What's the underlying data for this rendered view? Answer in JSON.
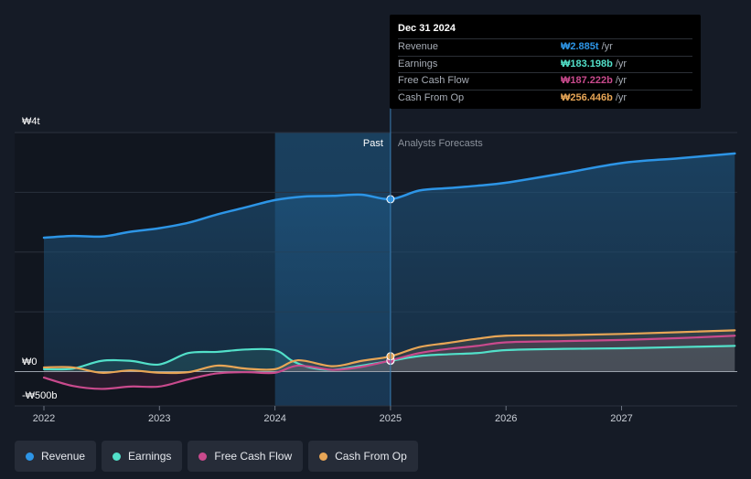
{
  "colors": {
    "revenue": "#2d95e6",
    "earnings": "#52e0c9",
    "free_cash_flow": "#c94a8d",
    "cash_from_op": "#e8a656"
  },
  "tooltip": {
    "date": "Dec 31 2024",
    "rows": [
      {
        "label": "Revenue",
        "value": "₩2.885t",
        "unit": "/yr"
      },
      {
        "label": "Earnings",
        "value": "₩183.198b",
        "unit": "/yr"
      },
      {
        "label": "Free Cash Flow",
        "value": "₩187.222b",
        "unit": "/yr"
      },
      {
        "label": "Cash From Op",
        "value": "₩256.446b",
        "unit": "/yr"
      }
    ]
  },
  "legend": [
    {
      "name": "Revenue"
    },
    {
      "name": "Earnings"
    },
    {
      "name": "Free Cash Flow"
    },
    {
      "name": "Cash From Op"
    }
  ],
  "chart_data": {
    "type": "line",
    "title": "",
    "y_unit": "trillion KRW",
    "ylim": [
      -0.5,
      4.0
    ],
    "y_tick_labels": {
      "top": "₩4t",
      "zero": "₩0",
      "bottom": "-₩500b"
    },
    "x_ticks": [
      2022,
      2023,
      2024,
      2025,
      2026,
      2027
    ],
    "x_tick_labels": [
      "2022",
      "2023",
      "2024",
      "2025",
      "2026",
      "2027"
    ],
    "xlim": [
      2021.75,
      2028.0
    ],
    "past_label": "Past",
    "forecast_label": "Analysts Forecasts",
    "forecast_start": 2025.0,
    "highlight_range": [
      2024.0,
      2025.0
    ],
    "series": [
      {
        "name": "Revenue",
        "key": "revenue",
        "points": [
          [
            2022.0,
            2.24
          ],
          [
            2022.25,
            2.27
          ],
          [
            2022.5,
            2.26
          ],
          [
            2022.75,
            2.34
          ],
          [
            2023.0,
            2.4
          ],
          [
            2023.25,
            2.49
          ],
          [
            2023.5,
            2.63
          ],
          [
            2023.75,
            2.75
          ],
          [
            2024.0,
            2.87
          ],
          [
            2024.25,
            2.93
          ],
          [
            2024.5,
            2.94
          ],
          [
            2024.75,
            2.96
          ],
          [
            2025.0,
            2.885
          ],
          [
            2025.25,
            3.03
          ],
          [
            2025.5,
            3.07
          ],
          [
            2025.75,
            3.11
          ],
          [
            2026.0,
            3.16
          ],
          [
            2026.5,
            3.32
          ],
          [
            2027.0,
            3.49
          ],
          [
            2027.5,
            3.57
          ],
          [
            2027.98,
            3.65
          ]
        ]
      },
      {
        "name": "Earnings",
        "key": "earnings",
        "points": [
          [
            2022.0,
            0.04
          ],
          [
            2022.25,
            0.05
          ],
          [
            2022.5,
            0.18
          ],
          [
            2022.75,
            0.18
          ],
          [
            2023.0,
            0.12
          ],
          [
            2023.25,
            0.31
          ],
          [
            2023.5,
            0.33
          ],
          [
            2023.75,
            0.37
          ],
          [
            2024.0,
            0.36
          ],
          [
            2024.15,
            0.18
          ],
          [
            2024.3,
            0.07
          ],
          [
            2024.5,
            0.03
          ],
          [
            2024.75,
            0.1
          ],
          [
            2025.0,
            0.18
          ],
          [
            2025.25,
            0.26
          ],
          [
            2025.5,
            0.29
          ],
          [
            2025.75,
            0.31
          ],
          [
            2026.0,
            0.36
          ],
          [
            2026.5,
            0.38
          ],
          [
            2027.0,
            0.39
          ],
          [
            2027.5,
            0.41
          ],
          [
            2027.98,
            0.43
          ]
        ]
      },
      {
        "name": "Free Cash Flow",
        "key": "free_cash_flow",
        "points": [
          [
            2022.0,
            -0.1
          ],
          [
            2022.25,
            -0.24
          ],
          [
            2022.5,
            -0.29
          ],
          [
            2022.75,
            -0.25
          ],
          [
            2023.0,
            -0.25
          ],
          [
            2023.25,
            -0.13
          ],
          [
            2023.5,
            -0.03
          ],
          [
            2023.75,
            -0.01
          ],
          [
            2024.0,
            -0.02
          ],
          [
            2024.2,
            0.1
          ],
          [
            2024.5,
            0.03
          ],
          [
            2024.75,
            0.08
          ],
          [
            2025.0,
            0.187
          ],
          [
            2025.25,
            0.31
          ],
          [
            2025.5,
            0.38
          ],
          [
            2025.75,
            0.43
          ],
          [
            2026.0,
            0.49
          ],
          [
            2026.5,
            0.51
          ],
          [
            2027.0,
            0.53
          ],
          [
            2027.5,
            0.56
          ],
          [
            2027.98,
            0.6
          ]
        ]
      },
      {
        "name": "Cash From Op",
        "key": "cash_from_op",
        "points": [
          [
            2022.0,
            0.07
          ],
          [
            2022.25,
            0.07
          ],
          [
            2022.5,
            -0.02
          ],
          [
            2022.75,
            0.02
          ],
          [
            2023.0,
            -0.02
          ],
          [
            2023.25,
            -0.01
          ],
          [
            2023.5,
            0.1
          ],
          [
            2023.75,
            0.05
          ],
          [
            2024.0,
            0.04
          ],
          [
            2024.2,
            0.19
          ],
          [
            2024.5,
            0.09
          ],
          [
            2024.75,
            0.18
          ],
          [
            2025.0,
            0.256
          ],
          [
            2025.25,
            0.41
          ],
          [
            2025.5,
            0.48
          ],
          [
            2025.75,
            0.55
          ],
          [
            2026.0,
            0.6
          ],
          [
            2026.5,
            0.61
          ],
          [
            2027.0,
            0.63
          ],
          [
            2027.5,
            0.66
          ],
          [
            2027.98,
            0.69
          ]
        ]
      }
    ]
  }
}
